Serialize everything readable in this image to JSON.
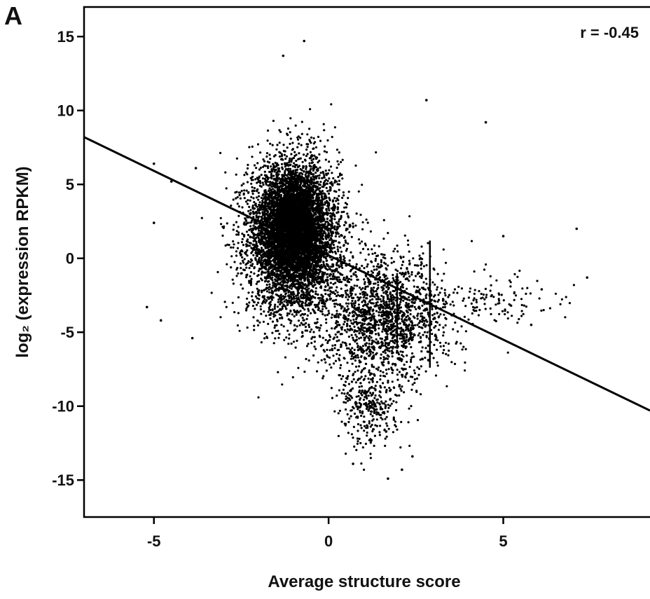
{
  "chart_data": {
    "type": "scatter",
    "panel_label": "A",
    "annotation": "r = -0.45",
    "xlabel": "Average structure score",
    "ylabel": "log₂ (expression RPKM)",
    "xlim": [
      -7,
      9.2
    ],
    "ylim": [
      -17.5,
      17
    ],
    "xticks": [
      -5,
      0,
      5
    ],
    "yticks": [
      15,
      10,
      5,
      0,
      -5,
      -10,
      -15
    ],
    "grid": false,
    "regression_line": {
      "x": [
        -7,
        9.2
      ],
      "y": [
        8.2,
        -10.3
      ]
    },
    "point_color": "#000000",
    "clusters": [
      {
        "name": "main",
        "center": [
          -1.0,
          1.5
        ],
        "sd": [
          0.65,
          2.6
        ],
        "n": 5200
      },
      {
        "name": "core",
        "center": [
          -1.0,
          2.3
        ],
        "sd": [
          0.4,
          1.6
        ],
        "n": 2600
      },
      {
        "name": "right-tail",
        "center": [
          1.6,
          -4.0
        ],
        "sd": [
          0.9,
          2.1
        ],
        "n": 1700
      },
      {
        "name": "low-tail",
        "center": [
          1.2,
          -10.0
        ],
        "sd": [
          0.45,
          1.4
        ],
        "n": 320
      },
      {
        "name": "far-right",
        "center": [
          4.8,
          -2.8
        ],
        "sd": [
          0.8,
          0.9
        ],
        "n": 120
      }
    ],
    "outliers": [
      [
        -5.2,
        -3.3
      ],
      [
        -5.0,
        2.4
      ],
      [
        -4.8,
        -4.2
      ],
      [
        -5.0,
        6.4
      ],
      [
        -4.5,
        5.2
      ],
      [
        -3.8,
        6.1
      ],
      [
        -3.9,
        -5.4
      ],
      [
        -0.7,
        14.7
      ],
      [
        -1.3,
        13.7
      ],
      [
        2.8,
        10.7
      ],
      [
        4.5,
        9.2
      ],
      [
        7.1,
        2.0
      ],
      [
        7.4,
        -1.3
      ],
      [
        1.7,
        -14.9
      ],
      [
        2.1,
        -14.3
      ],
      [
        0.7,
        -13.9
      ],
      [
        2.4,
        -13.4
      ],
      [
        5.8,
        -4.5
      ],
      [
        6.1,
        -2.1
      ],
      [
        5.0,
        1.5
      ]
    ],
    "vertical_streaks": [
      {
        "x": 2.9,
        "y_from": -7.4,
        "y_to": 1.2
      },
      {
        "x": 1.96,
        "y_from": -6.0,
        "y_to": -1.0
      }
    ]
  }
}
